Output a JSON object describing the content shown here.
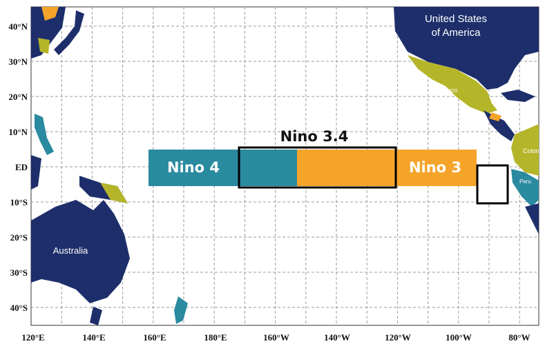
{
  "map": {
    "latitude_labels": [
      "40°N",
      "30°N",
      "20°N",
      "10°N",
      "ED",
      "10°S",
      "20°S",
      "30°S",
      "40°S"
    ],
    "longitude_labels": [
      "120°E",
      "140°E",
      "160°E",
      "180°E",
      "160°W",
      "140°W",
      "120°W",
      "100°W",
      "80°W"
    ],
    "regions": {
      "nino4": "Nino 4",
      "nino34": "Nino 3.4",
      "nino3": "Nino 3"
    },
    "places": {
      "usa_line1": "United States",
      "usa_line2": "of America",
      "mexico": "Mexico",
      "australia": "Australia",
      "colombia": "Colon",
      "peru": "Peru"
    }
  }
}
